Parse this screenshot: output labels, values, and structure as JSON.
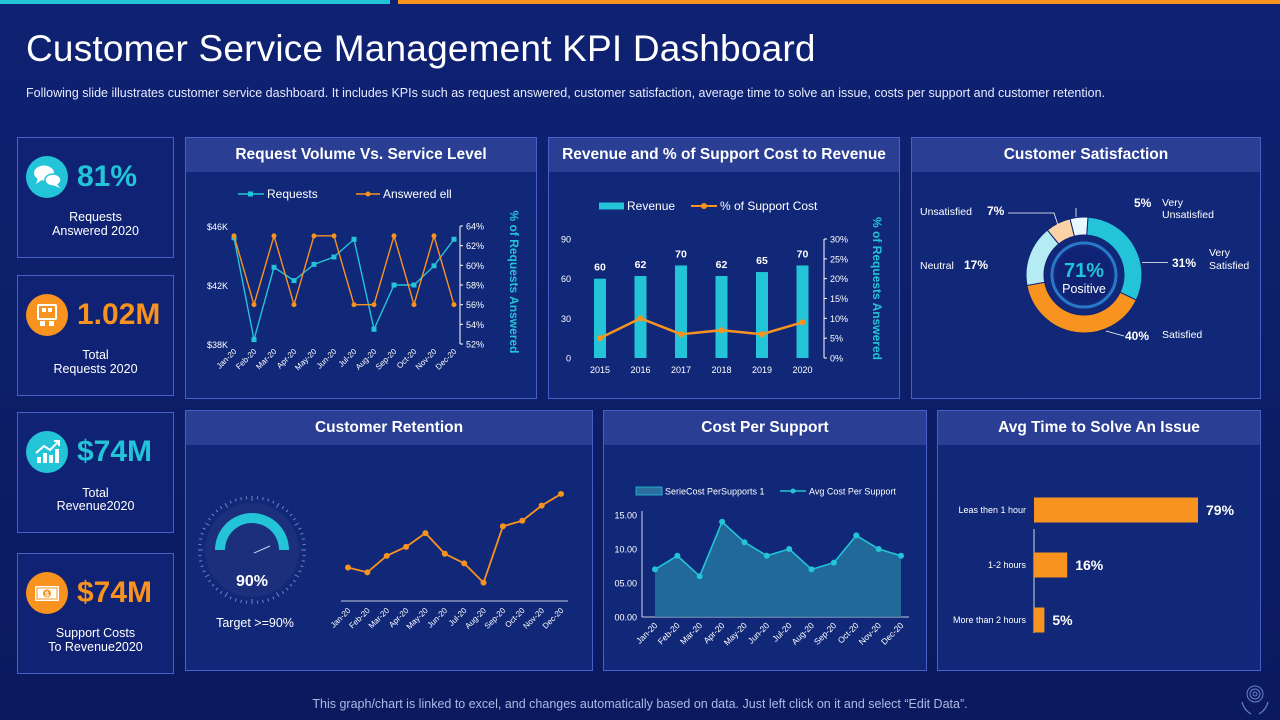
{
  "title": "Customer Service Management KPI Dashboard",
  "subtitle": "Following slide illustrates customer service dashboard. It includes KPIs such as request answered, customer satisfaction, average time to solve an issue, costs per support and customer retention.",
  "footer": "This graph/chart is linked to excel, and changes automatically based on data. Just left click on it and select “Edit Data”.",
  "colors": {
    "cyan": "#23c4d8",
    "orange": "#f7931e",
    "bg": "#0f2273",
    "header": "#2a3f94"
  },
  "kpis": [
    {
      "value": "81%",
      "line1": "Requests",
      "line2": "Answered 2020",
      "icon": "chat-bubbles-icon",
      "accent": "#23c4d8"
    },
    {
      "value": "1.02M",
      "line1": "Total",
      "line2": "Requests 2020",
      "icon": "requests-board-icon",
      "accent": "#f7931e"
    },
    {
      "value": "$74M",
      "line1": "Total",
      "line2": "Revenue2020",
      "icon": "growth-chart-icon",
      "accent": "#23c4d8"
    },
    {
      "value": "$74M",
      "line1": "Support Costs",
      "line2": "To Revenue2020",
      "icon": "money-bill-icon",
      "accent": "#f7931e"
    }
  ],
  "panels": {
    "request_volume": "Request Volume Vs. Service Level",
    "revenue": "Revenue and % of Support Cost to Revenue",
    "satisfaction": "Customer Satisfaction",
    "retention": "Customer Retention",
    "cost_per_support": "Cost Per Support",
    "avg_time": "Avg Time to Solve An Issue"
  },
  "chart_data": [
    {
      "id": "request_volume",
      "type": "line",
      "title": "Request Volume Vs. Service Level",
      "categories": [
        "Jan-20",
        "Feb-20",
        "Mar-20",
        "Apr-20",
        "May-20",
        "Jun-20",
        "Jul-20",
        "Aug-20",
        "Sep-20",
        "Oct-20",
        "Nov-20",
        "Dec-20"
      ],
      "series": [
        {
          "name": "Requests",
          "axis": "left",
          "values": [
            45.2,
            38.3,
            43.2,
            42.3,
            43.4,
            43.9,
            45.1,
            39.0,
            42.0,
            42.0,
            43.3,
            45.1
          ]
        },
        {
          "name": "Answered ell",
          "axis": "right",
          "values": [
            63,
            56,
            63,
            56,
            63,
            63,
            56,
            56,
            63,
            56,
            63,
            56
          ]
        }
      ],
      "y_left_ticks": [
        "$38K",
        "$42K",
        "$46K"
      ],
      "y_left_range": [
        38,
        46
      ],
      "y_right_ticks": [
        "52%",
        "54%",
        "56%",
        "58%",
        "60%",
        "62%",
        "64%"
      ],
      "y_right_range": [
        52,
        64
      ],
      "y_right_label": "% of Requests Answered"
    },
    {
      "id": "revenue",
      "type": "bar",
      "title": "Revenue and % of Support Cost to Revenue",
      "categories": [
        "2015",
        "2016",
        "2017",
        "2018",
        "2019",
        "2020"
      ],
      "series": [
        {
          "name": "Revenue",
          "axis": "left",
          "values": [
            60,
            62,
            70,
            62,
            65,
            70
          ]
        },
        {
          "name": "% of Support Cost",
          "axis": "right",
          "values": [
            5,
            10,
            6,
            7,
            6,
            9
          ]
        }
      ],
      "y_left_ticks": [
        "0",
        "30",
        "60",
        "90"
      ],
      "y_left_range": [
        0,
        90
      ],
      "y_right_ticks": [
        "0%",
        "5%",
        "10%",
        "15%",
        "20%",
        "25%",
        "30%"
      ],
      "y_right_range": [
        0,
        30
      ],
      "y_right_label": "% of Requests Answered"
    },
    {
      "id": "satisfaction",
      "type": "pie",
      "title": "Customer Satisfaction",
      "center_value": "71%",
      "center_label": "Positive",
      "slices": [
        {
          "name": "Very Unsatisfied",
          "label": "Very\nUnsatisfied",
          "value": 5,
          "display": "5%",
          "color": "#e8f7ff"
        },
        {
          "name": "Very Satisfied",
          "label": "Very\nSatisfied",
          "value": 31,
          "display": "31%",
          "color": "#23c4d8"
        },
        {
          "name": "Satisfied",
          "label": "Satisfied",
          "value": 40,
          "display": "40%",
          "color": "#f7931e"
        },
        {
          "name": "Neutral",
          "label": "Neutral",
          "value": 17,
          "display": "17%",
          "color": "#b5ecf4"
        },
        {
          "name": "Unsatisfied",
          "label": "Unsatisfied",
          "value": 7,
          "display": "7%",
          "color": "#f9d2a6"
        }
      ]
    },
    {
      "id": "retention",
      "type": "line",
      "title": "Customer Retention",
      "gauge_value": 90,
      "gauge_display": "90%",
      "gauge_target": "Target >=90%",
      "categories": [
        "Jan-20",
        "Feb-20",
        "Mar-20",
        "Apr-20",
        "May-20",
        "Jun-20",
        "Jul-20",
        "Aug-20",
        "Sep-20",
        "Oct-20",
        "Nov-20",
        "Dec-20"
      ],
      "values": [
        4,
        3.3,
        5.7,
        7,
        9,
        6,
        4.6,
        1.8,
        10,
        10.8,
        13,
        14.7
      ],
      "y_range": [
        0,
        16
      ]
    },
    {
      "id": "cost_per_support",
      "type": "area",
      "title": "Cost Per Support",
      "categories": [
        "Jan-20",
        "Feb-20",
        "Mar-20",
        "Apr-20",
        "May-20",
        "Jun-20",
        "Jul-20",
        "Aug-20",
        "Sep-20",
        "Oct-20",
        "Nov-20",
        "Dec-20"
      ],
      "series": [
        {
          "name": "SerieCost PerSupports 1",
          "values": [
            7,
            9,
            6,
            14,
            11,
            9,
            10,
            7,
            8,
            12,
            10,
            9
          ]
        },
        {
          "name": "Avg Cost Per Support",
          "values": [
            7,
            9,
            6,
            14,
            11,
            9,
            10,
            7,
            8,
            12,
            10,
            9
          ]
        }
      ],
      "y_ticks": [
        "00.00",
        "05.00",
        "10.00",
        "15.00"
      ],
      "y_range": [
        0,
        15
      ]
    },
    {
      "id": "avg_time",
      "type": "bar",
      "orientation": "horizontal",
      "title": "Avg Time to Solve An Issue",
      "categories": [
        "Leas then 1 hour",
        "1-2 hours",
        "More than 2 hours"
      ],
      "values": [
        79,
        16,
        5
      ],
      "labels": [
        "79%",
        "16%",
        "5%"
      ],
      "x_range": [
        0,
        100
      ]
    }
  ]
}
